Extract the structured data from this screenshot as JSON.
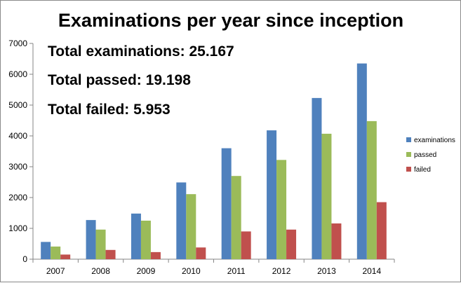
{
  "chart_data": {
    "type": "bar",
    "title": "Examinations  per year since inception",
    "categories": [
      "2007",
      "2008",
      "2009",
      "2010",
      "2011",
      "2012",
      "2013",
      "2014"
    ],
    "series": [
      {
        "name": "examinations",
        "color": "#4F81BD",
        "values": [
          560,
          1270,
          1480,
          2490,
          3600,
          4180,
          5230,
          6350
        ]
      },
      {
        "name": "passed",
        "color": "#9BBB59",
        "values": [
          410,
          960,
          1250,
          2110,
          2700,
          3220,
          4070,
          4480
        ]
      },
      {
        "name": "failed",
        "color": "#C0504D",
        "values": [
          150,
          300,
          230,
          380,
          900,
          960,
          1160,
          1850
        ]
      }
    ],
    "ylim": [
      0,
      7000
    ],
    "yticks": [
      "0",
      "1000",
      "2000",
      "3000",
      "4000",
      "5000",
      "6000",
      "7000"
    ],
    "grid": false,
    "legend": "right",
    "annotations": [
      "Total examinations: 25.167",
      "Total passed: 19.198",
      "Total failed: 5.953"
    ]
  }
}
